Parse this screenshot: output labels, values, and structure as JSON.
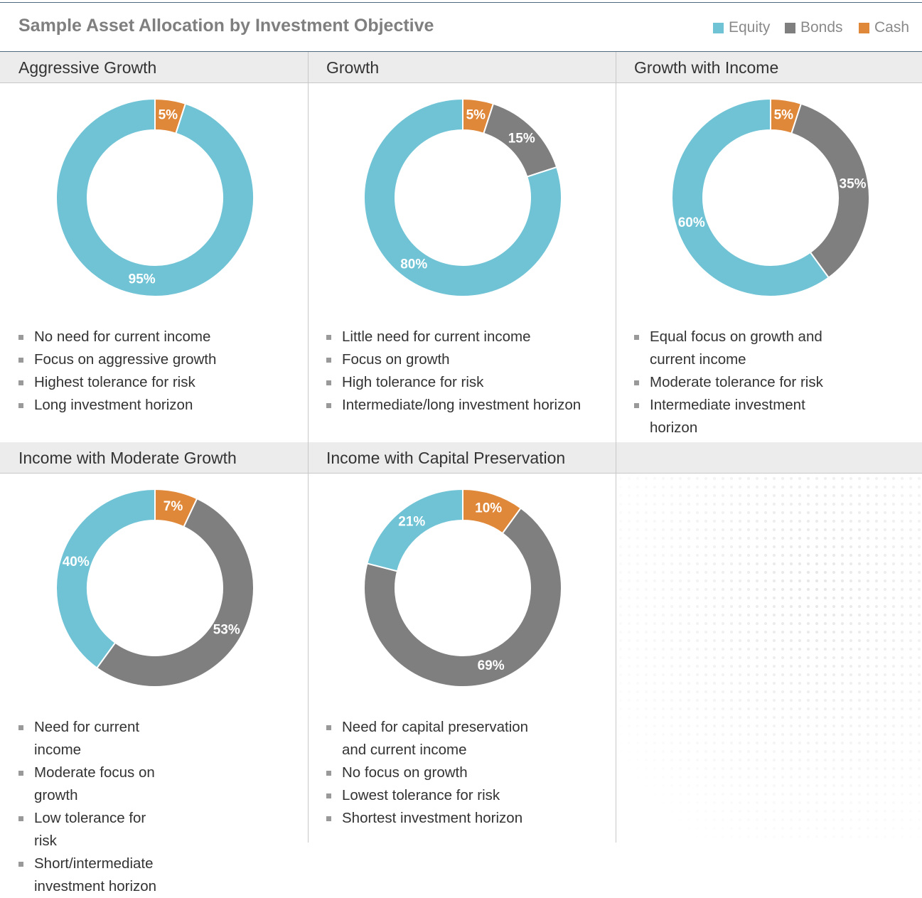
{
  "title": "Sample Asset Allocation by Investment Objective",
  "legend": {
    "names": [
      "Equity",
      "Bonds",
      "Cash"
    ],
    "colors": [
      "#6fc3d5",
      "#7f7f80",
      "#e0883a"
    ]
  },
  "chart_data": [
    {
      "type": "donut",
      "title": "Aggressive Growth",
      "values": [
        95,
        0,
        5
      ],
      "value_labels": [
        "95%",
        null,
        "5%"
      ],
      "notes": [
        "No need for current income",
        "Focus on aggressive growth",
        "Highest tolerance for risk",
        "Long investment horizon"
      ]
    },
    {
      "type": "donut",
      "title": "Growth",
      "values": [
        80,
        15,
        5
      ],
      "value_labels": [
        "80%",
        "15%",
        "5%"
      ],
      "notes": [
        "Little need for current income",
        "Focus on growth",
        "High tolerance for risk",
        "Intermediate/long investment horizon"
      ]
    },
    {
      "type": "donut",
      "title": "Growth with Income",
      "values": [
        60,
        35,
        5
      ],
      "value_labels": [
        "60%",
        "35%",
        "5%"
      ],
      "notes": [
        "Equal focus on growth and current income",
        "Moderate tolerance for risk",
        "Intermediate investment horizon"
      ]
    },
    {
      "type": "donut",
      "title": "Income with Moderate Growth",
      "values": [
        40,
        53,
        7
      ],
      "value_labels": [
        "40%",
        "53%",
        "7%"
      ],
      "notes": [
        "Need for current income",
        "Moderate focus on growth",
        "Low tolerance for risk",
        "Short/intermediate investment horizon"
      ]
    },
    {
      "type": "donut",
      "title": "Income with Capital Preservation",
      "values": [
        21,
        69,
        10
      ],
      "value_labels": [
        "21%",
        "69%",
        "10%"
      ],
      "notes": [
        "Need for capital preservation and current income",
        "No focus on growth",
        "Lowest tolerance for risk",
        "Shortest investment horizon"
      ]
    }
  ]
}
